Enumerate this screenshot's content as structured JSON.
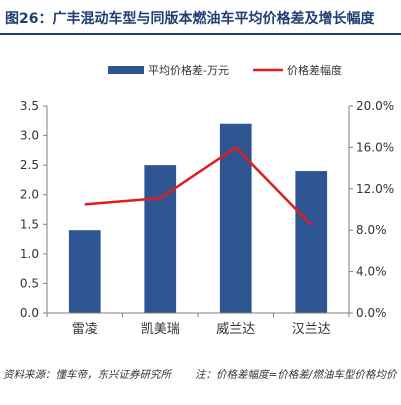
{
  "header": {
    "figure_label": "图26：",
    "title_text": "广丰混动车型与同版本燃油车平均价格差及增长幅度"
  },
  "footer": {
    "source": "资料来源：懂车帝，东兴证券研究所",
    "note": "注：价格差幅度=价格差/燃油车型价格均价"
  },
  "colors": {
    "title": "#1f3f72",
    "bar": "#2e5591",
    "line": "#e21c1c",
    "axis": "#7f7f7f"
  },
  "chart_data": {
    "type": "bar",
    "title": "",
    "categories": [
      "雷凌",
      "凯美瑞",
      "威兰达",
      "汉兰达"
    ],
    "series": [
      {
        "name": "平均价格差-万元",
        "type": "bar",
        "axis": "left",
        "values": [
          1.4,
          2.5,
          3.2,
          2.4
        ]
      },
      {
        "name": "价格差幅度",
        "type": "line",
        "axis": "right",
        "values": [
          0.105,
          0.111,
          0.16,
          0.085
        ]
      }
    ],
    "left_axis": {
      "ylim": [
        0,
        3.5
      ],
      "ticks": [
        0,
        0.5,
        1.0,
        1.5,
        2.0,
        2.5,
        3.0,
        3.5
      ],
      "tick_labels": [
        "0.0",
        "0.5",
        "1.0",
        "1.5",
        "2.0",
        "2.5",
        "3.0",
        "3.5"
      ]
    },
    "right_axis": {
      "ylim": [
        0,
        0.2
      ],
      "ticks": [
        0,
        0.04,
        0.08,
        0.12,
        0.16,
        0.2
      ],
      "tick_labels": [
        "0.0%",
        "4.0%",
        "8.0%",
        "12.0%",
        "16.0%",
        "20.0%"
      ]
    },
    "grid": false,
    "legend_position": "top-center"
  }
}
